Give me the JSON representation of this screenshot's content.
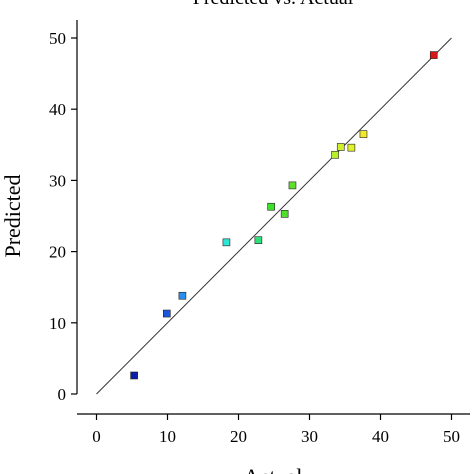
{
  "chart_data": {
    "type": "scatter",
    "title": "Predicted vs. Actual",
    "xlabel": "Actual",
    "ylabel": "Predicted",
    "xlim": [
      0,
      50
    ],
    "ylim": [
      0,
      50
    ],
    "x_ticks": [
      "0",
      "10",
      "20",
      "30",
      "40",
      "50"
    ],
    "y_ticks": [
      "0",
      "10",
      "20",
      "30",
      "40",
      "50"
    ],
    "reference_line": {
      "from": [
        0,
        0
      ],
      "to": [
        50,
        50
      ]
    },
    "points": [
      {
        "x": 5.3,
        "y": 2.6,
        "color": "#0a1ea8"
      },
      {
        "x": 9.9,
        "y": 11.3,
        "color": "#1a56e0"
      },
      {
        "x": 12.1,
        "y": 13.8,
        "color": "#2a8ef0"
      },
      {
        "x": 18.3,
        "y": 21.3,
        "color": "#2ee6d6"
      },
      {
        "x": 22.8,
        "y": 21.6,
        "color": "#2ee07a"
      },
      {
        "x": 24.6,
        "y": 26.3,
        "color": "#3ee02a"
      },
      {
        "x": 26.5,
        "y": 25.3,
        "color": "#4ee02a"
      },
      {
        "x": 27.6,
        "y": 29.3,
        "color": "#5ee02a"
      },
      {
        "x": 33.6,
        "y": 33.6,
        "color": "#b8ee2a"
      },
      {
        "x": 34.4,
        "y": 34.7,
        "color": "#d0f02a"
      },
      {
        "x": 35.9,
        "y": 34.6,
        "color": "#e2f02a"
      },
      {
        "x": 37.6,
        "y": 36.5,
        "color": "#f2e82a"
      },
      {
        "x": 47.5,
        "y": 47.6,
        "color": "#d81818"
      }
    ],
    "grid": false,
    "legend": "none"
  }
}
